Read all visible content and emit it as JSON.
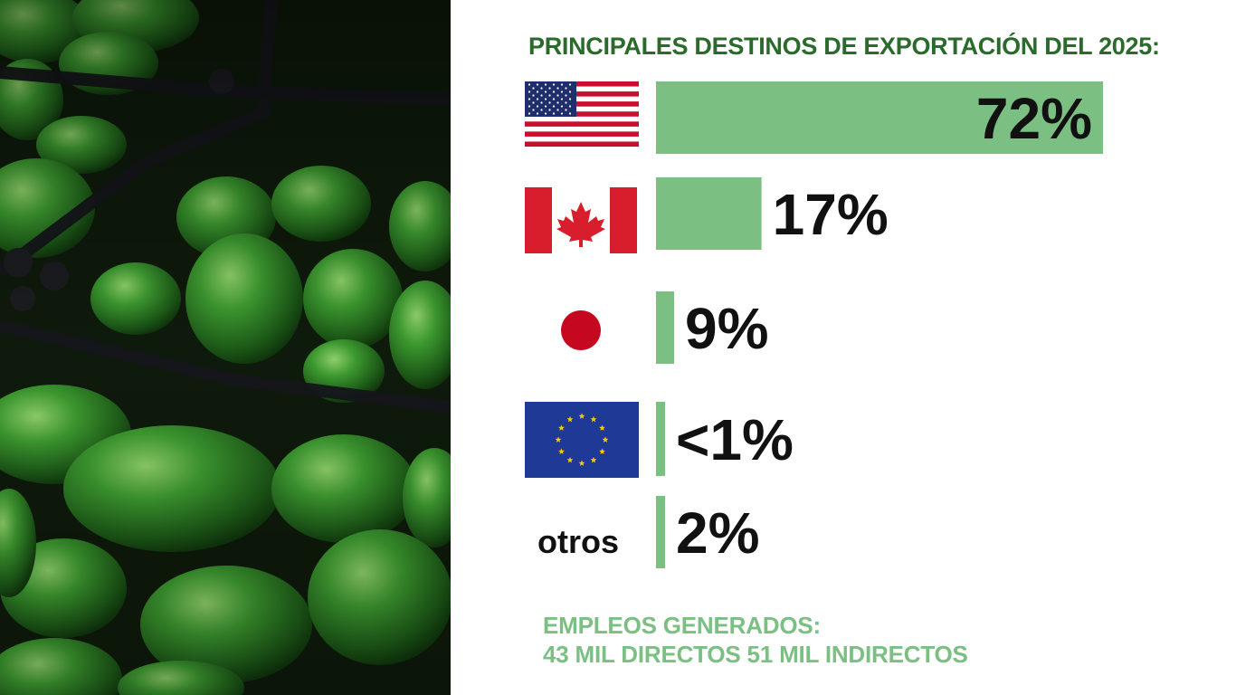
{
  "title": "PRINCIPALES DESTINOS DE EXPORTACIÓN DEL 2025:",
  "colors": {
    "bar": "#7bbf83",
    "title": "#2a6a2a",
    "footer": "#7bbf83",
    "value": "#111111"
  },
  "destinations": [
    {
      "id": "usa",
      "icon": "usa-flag-icon",
      "value_label": "72%"
    },
    {
      "id": "canada",
      "icon": "canada-flag-icon",
      "value_label": "17%"
    },
    {
      "id": "japan",
      "icon": "japan-flag-icon",
      "value_label": "9%"
    },
    {
      "id": "eu",
      "icon": "eu-flag-icon",
      "value_label": "<1%"
    },
    {
      "id": "otros",
      "label": "otros",
      "value_label": "2%"
    }
  ],
  "chart_data": {
    "type": "bar",
    "orientation": "horizontal",
    "title": "PRINCIPALES DESTINOS DE EXPORTACIÓN DEL 2025:",
    "categories": [
      "",
      "",
      "",
      "",
      "otros"
    ],
    "values": [
      72,
      17,
      9,
      0.5,
      2
    ],
    "value_labels": [
      "72%",
      "17%",
      "9%",
      "<1%",
      "2%"
    ]
  },
  "footer": {
    "line1": "EMPLEOS GENERADOS:",
    "line2": "43 MIL DIRECTOS 51 MIL INDIRECTOS"
  }
}
